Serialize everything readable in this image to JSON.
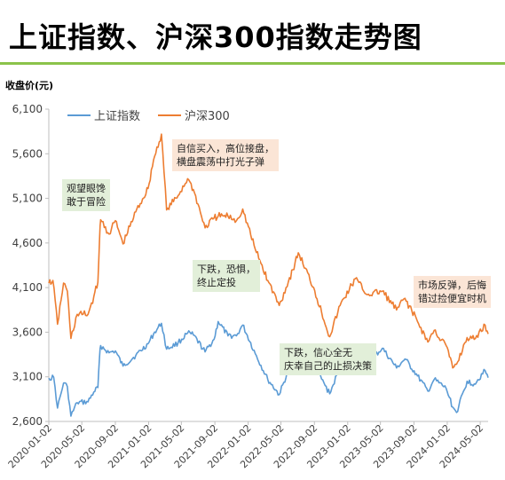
{
  "title": "上证指数、沪深300指数走势图",
  "chart_data": {
    "type": "line",
    "ylabel": "收盘价(元)",
    "ylim": [
      2600,
      6100
    ],
    "yticks": [
      2600,
      3100,
      3600,
      4100,
      4600,
      5100,
      5600,
      6100
    ],
    "ytick_labels": [
      "2,600",
      "3,100",
      "3,600",
      "4,100",
      "4,600",
      "5,100",
      "5,600",
      "6,100"
    ],
    "xlim": [
      "2020-01-02",
      "2024-05-31"
    ],
    "xticks": [
      "2020-01-02",
      "2020-05-02",
      "2020-09-02",
      "2021-01-02",
      "2021-05-02",
      "2021-09-02",
      "2022-01-02",
      "2022-05-02",
      "2022-09-02",
      "2023-01-02",
      "2023-05-02",
      "2023-09-02",
      "2024-01-02",
      "2024-05-02"
    ],
    "grid": false,
    "legend": "top-left",
    "series": [
      {
        "name": "上证指数",
        "color": "#5b9bd5",
        "points": [
          [
            "2020-01-02",
            3085
          ],
          [
            "2020-01-20",
            3095
          ],
          [
            "2020-02-03",
            2750
          ],
          [
            "2020-02-25",
            3030
          ],
          [
            "2020-03-10",
            2990
          ],
          [
            "2020-03-23",
            2660
          ],
          [
            "2020-04-15",
            2810
          ],
          [
            "2020-05-25",
            2820
          ],
          [
            "2020-06-15",
            2930
          ],
          [
            "2020-06-30",
            2980
          ],
          [
            "2020-07-06",
            3330
          ],
          [
            "2020-07-10",
            3450
          ],
          [
            "2020-08-10",
            3370
          ],
          [
            "2020-09-02",
            3390
          ],
          [
            "2020-09-30",
            3220
          ],
          [
            "2020-11-16",
            3340
          ],
          [
            "2020-12-31",
            3470
          ],
          [
            "2021-01-20",
            3580
          ],
          [
            "2021-02-18",
            3700
          ],
          [
            "2021-03-09",
            3410
          ],
          [
            "2021-04-20",
            3480
          ],
          [
            "2021-05-25",
            3590
          ],
          [
            "2021-06-15",
            3570
          ],
          [
            "2021-07-28",
            3380
          ],
          [
            "2021-08-30",
            3520
          ],
          [
            "2021-09-14",
            3720
          ],
          [
            "2021-10-20",
            3560
          ],
          [
            "2021-11-20",
            3560
          ],
          [
            "2021-12-13",
            3680
          ],
          [
            "2022-01-28",
            3360
          ],
          [
            "2022-03-15",
            3070
          ],
          [
            "2022-04-26",
            2900
          ],
          [
            "2022-06-15",
            3300
          ],
          [
            "2022-07-05",
            3400
          ],
          [
            "2022-08-30",
            3230
          ],
          [
            "2022-10-28",
            2910
          ],
          [
            "2022-12-05",
            3210
          ],
          [
            "2023-01-30",
            3300
          ],
          [
            "2023-03-15",
            3250
          ],
          [
            "2023-05-09",
            3420
          ],
          [
            "2023-06-30",
            3200
          ],
          [
            "2023-07-31",
            3300
          ],
          [
            "2023-09-15",
            3110
          ],
          [
            "2023-10-23",
            2940
          ],
          [
            "2023-11-15",
            3070
          ],
          [
            "2023-12-29",
            2970
          ],
          [
            "2024-01-22",
            2760
          ],
          [
            "2024-02-05",
            2700
          ],
          [
            "2024-03-15",
            3050
          ],
          [
            "2024-04-10",
            3020
          ],
          [
            "2024-05-20",
            3170
          ],
          [
            "2024-05-31",
            3090
          ]
        ]
      },
      {
        "name": "沪深300",
        "color": "#ed7d31",
        "points": [
          [
            "2020-01-02",
            4150
          ],
          [
            "2020-01-17",
            4180
          ],
          [
            "2020-02-03",
            3690
          ],
          [
            "2020-02-25",
            4150
          ],
          [
            "2020-03-10",
            4060
          ],
          [
            "2020-03-23",
            3530
          ],
          [
            "2020-04-15",
            3800
          ],
          [
            "2020-05-25",
            3800
          ],
          [
            "2020-06-15",
            4000
          ],
          [
            "2020-06-30",
            4160
          ],
          [
            "2020-07-06",
            4650
          ],
          [
            "2020-07-10",
            4860
          ],
          [
            "2020-08-10",
            4700
          ],
          [
            "2020-09-02",
            4850
          ],
          [
            "2020-09-30",
            4590
          ],
          [
            "2020-11-16",
            4950
          ],
          [
            "2020-12-31",
            5210
          ],
          [
            "2021-01-20",
            5530
          ],
          [
            "2021-02-18",
            5820
          ],
          [
            "2021-03-09",
            4970
          ],
          [
            "2021-04-20",
            5130
          ],
          [
            "2021-05-25",
            5320
          ],
          [
            "2021-06-15",
            5200
          ],
          [
            "2021-07-28",
            4770
          ],
          [
            "2021-08-30",
            4880
          ],
          [
            "2021-09-14",
            4900
          ],
          [
            "2021-10-20",
            4900
          ],
          [
            "2021-11-20",
            4850
          ],
          [
            "2021-12-13",
            4980
          ],
          [
            "2022-01-28",
            4530
          ],
          [
            "2022-03-15",
            4180
          ],
          [
            "2022-04-26",
            3900
          ],
          [
            "2022-06-15",
            4300
          ],
          [
            "2022-07-05",
            4490
          ],
          [
            "2022-08-30",
            4100
          ],
          [
            "2022-10-28",
            3550
          ],
          [
            "2022-12-05",
            3900
          ],
          [
            "2023-01-30",
            4200
          ],
          [
            "2023-03-15",
            4020
          ],
          [
            "2023-05-09",
            4060
          ],
          [
            "2023-06-30",
            3850
          ],
          [
            "2023-07-31",
            3980
          ],
          [
            "2023-09-15",
            3720
          ],
          [
            "2023-10-23",
            3490
          ],
          [
            "2023-11-15",
            3620
          ],
          [
            "2023-12-29",
            3450
          ],
          [
            "2024-01-22",
            3200
          ],
          [
            "2024-02-05",
            3240
          ],
          [
            "2024-03-15",
            3540
          ],
          [
            "2024-04-10",
            3520
          ],
          [
            "2024-05-20",
            3680
          ],
          [
            "2024-05-31",
            3580
          ]
        ]
      }
    ],
    "annotations": [
      {
        "text": [
          "观望眼馋",
          "敢于冒险"
        ],
        "bg": "#e2efd9"
      },
      {
        "text": [
          "自信买入，高位接盘，",
          "横盘震荡中打光子弹"
        ],
        "bg": "#fbe5d6"
      },
      {
        "text": [
          "下跌，恐惧，",
          "终止定投"
        ],
        "bg": "#e2efd9"
      },
      {
        "text": [
          "下跌，信心全无",
          "庆幸自己的止损决策"
        ],
        "bg": "#e2efd9"
      },
      {
        "text": [
          "市场反弹，后悔",
          "错过捡便宜时机"
        ],
        "bg": "#fbe5d6"
      }
    ]
  }
}
